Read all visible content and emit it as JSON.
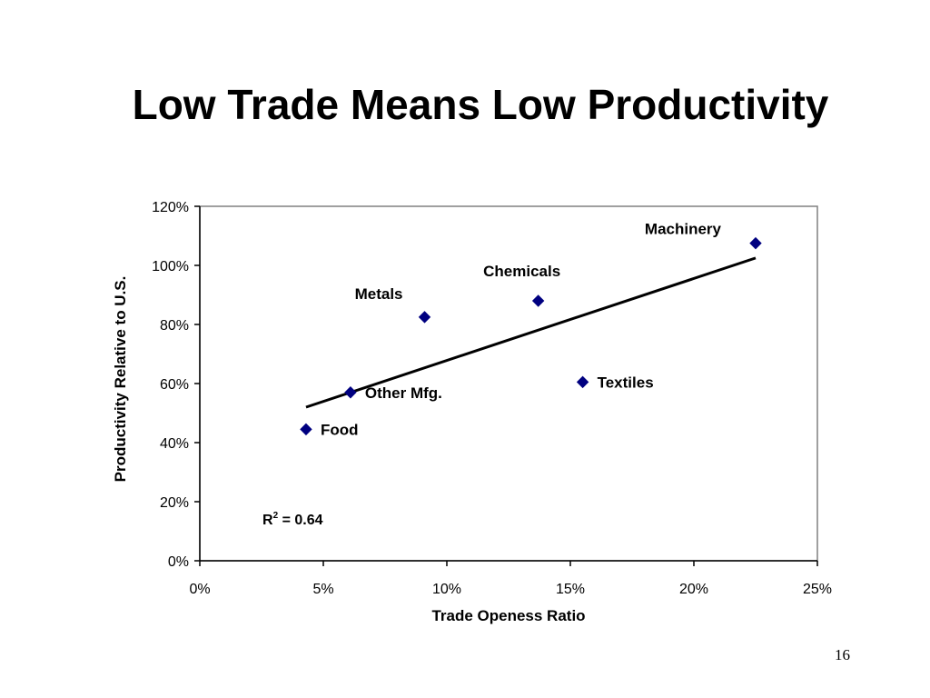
{
  "slide": {
    "title": "Low Trade Means Low Productivity",
    "page_number": "16"
  },
  "chart_data": {
    "type": "scatter",
    "title": "",
    "xlabel": "Trade Openess Ratio",
    "ylabel": "Productivity Relative to U.S.",
    "xlim": [
      0,
      0.25
    ],
    "ylim": [
      0,
      1.2
    ],
    "xticks": [
      0,
      0.05,
      0.1,
      0.15,
      0.2,
      0.25
    ],
    "xtick_labels": [
      "0%",
      "5%",
      "10%",
      "15%",
      "20%",
      "25%"
    ],
    "yticks": [
      0,
      0.2,
      0.4,
      0.6,
      0.8,
      1.0,
      1.2
    ],
    "ytick_labels": [
      "0%",
      "20%",
      "40%",
      "60%",
      "80%",
      "100%",
      "120%"
    ],
    "grid": false,
    "marker": "diamond",
    "marker_color": "#000080",
    "points": [
      {
        "label": "Food",
        "x": 0.043,
        "y": 0.445
      },
      {
        "label": "Other Mfg.",
        "x": 0.061,
        "y": 0.57
      },
      {
        "label": "Metals",
        "x": 0.091,
        "y": 0.825
      },
      {
        "label": "Chemicals",
        "x": 0.137,
        "y": 0.88
      },
      {
        "label": "Textiles",
        "x": 0.155,
        "y": 0.605
      },
      {
        "label": "Machinery",
        "x": 0.225,
        "y": 1.075
      }
    ],
    "trendline": {
      "x": [
        0.043,
        0.225
      ],
      "y": [
        0.52,
        1.025
      ]
    },
    "annotation": {
      "base": "R",
      "superscript": "2",
      "text": " = 0.64"
    }
  }
}
